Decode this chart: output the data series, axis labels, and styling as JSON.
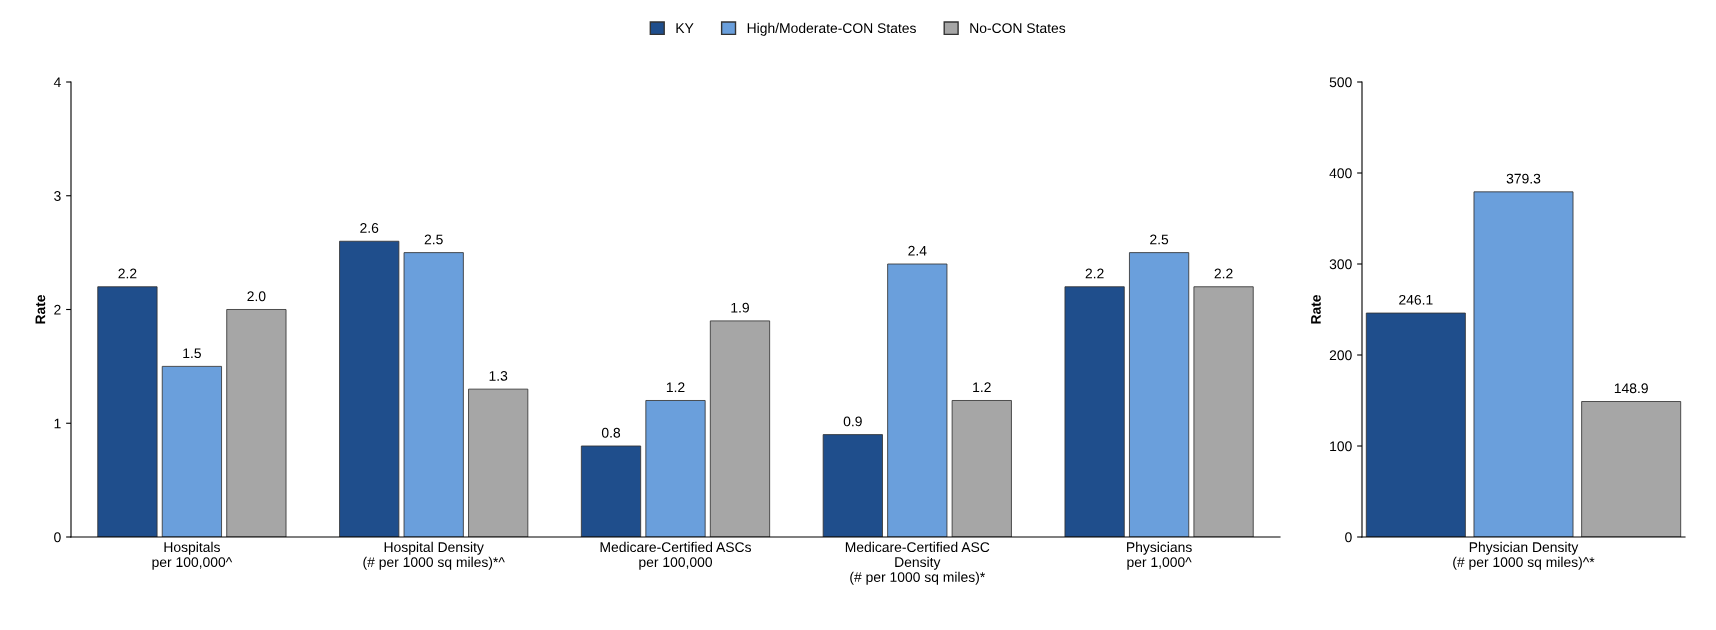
{
  "chart_data": [
    {
      "type": "bar",
      "ylabel": "Rate",
      "categories": [
        "Hospitals\nper 100,000^",
        "Hospital Density\n(# per 1000 sq miles)*^",
        "Medicare-Certified ASCs\nper 100,000",
        "Medicare-Certified ASC\nDensity\n(# per 1000 sq miles)*",
        "Physicians\nper 1,000^"
      ],
      "series": [
        {
          "name": "KY",
          "color": "#1f4e8c",
          "values": [
            2.2,
            2.6,
            0.8,
            0.9,
            2.2
          ],
          "value_labels": [
            "2.2",
            "2.6",
            "0.8",
            "0.9",
            "2.2"
          ]
        },
        {
          "name": "High/Moderate-CON States",
          "color": "#6a9fdc",
          "values": [
            1.5,
            2.5,
            1.2,
            2.4,
            2.5
          ],
          "value_labels": [
            "1.5",
            "2.5",
            "1.2",
            "2.4",
            "2.5"
          ]
        },
        {
          "name": "No-CON States",
          "color": "#a6a6a6",
          "values": [
            2.0,
            1.3,
            1.9,
            1.2,
            2.2
          ],
          "value_labels": [
            "2.0",
            "1.3",
            "1.9",
            "1.2",
            "2.2"
          ]
        }
      ],
      "ylim": [
        0,
        4
      ],
      "yticks": [
        0,
        1,
        2,
        3,
        4
      ],
      "grid": false,
      "legend": "top"
    },
    {
      "type": "bar",
      "ylabel": "Rate",
      "categories": [
        null,
        "Physician Density\n(# per 1000 sq miles)^*",
        null
      ],
      "values": [
        246.1,
        379.3,
        148.9
      ],
      "colors": [
        "#1f4e8c",
        "#6a9fdc",
        "#a6a6a6"
      ],
      "value_labels": [
        "246.1",
        "379.3",
        "148.9"
      ],
      "ylim": [
        0,
        500
      ],
      "yticks": [
        0,
        100,
        200,
        300,
        400,
        500
      ],
      "grid": false,
      "legend": false
    }
  ]
}
